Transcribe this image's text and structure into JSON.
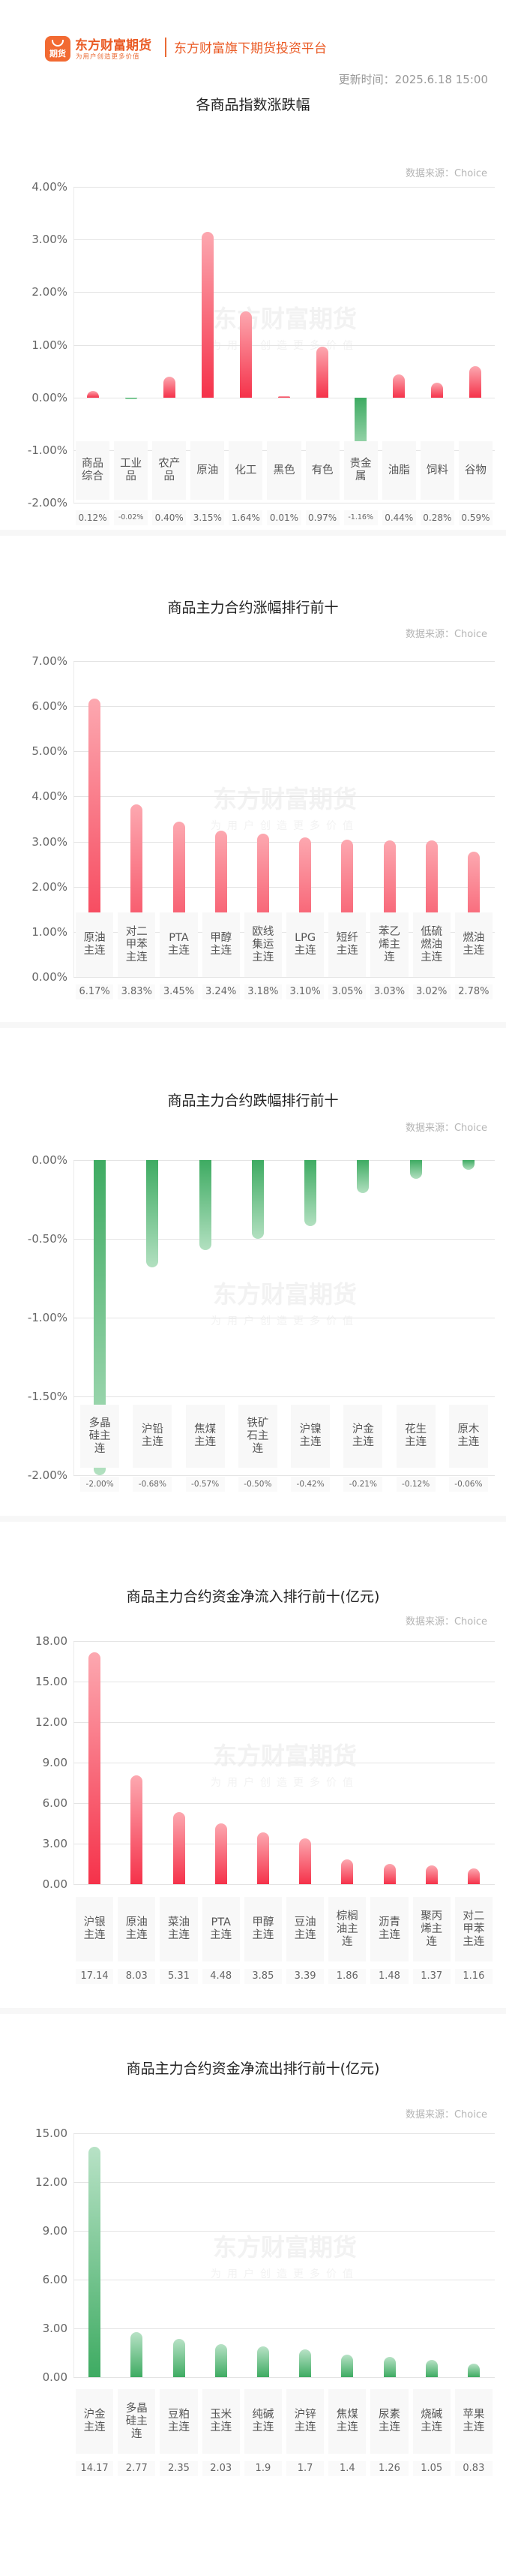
{
  "header": {
    "logo_text": "期货",
    "brand": "东方财富期货",
    "slogan": "为用户创造更多价值",
    "platform": "东方财富旗下期货投资平台",
    "update_time": "更新时间：2025.6.18 15:00"
  },
  "source_label": "数据来源：Choice",
  "watermark": {
    "line1": "东方财富期货",
    "line2": "为用户创造更多价值"
  },
  "sections": [
    {
      "title": "各商品指数涨跌幅",
      "yticks": [
        "4.00%",
        "3.00%",
        "2.00%",
        "1.00%",
        "0.00%",
        "-1.00%",
        "-2.00%"
      ],
      "labels": [
        "商品综合",
        "工业品",
        "农产品",
        "原油",
        "化工",
        "黑色",
        "有色",
        "贵金属",
        "油脂",
        "饲料",
        "谷物"
      ],
      "values": [
        "0.12%",
        "-0.02%",
        "0.40%",
        "3.15%",
        "1.64%",
        "0.01%",
        "0.97%",
        "-1.16%",
        "0.44%",
        "0.28%",
        "0.59%"
      ]
    },
    {
      "title": "商品主力合约涨幅排行前十",
      "yticks": [
        "7.00%",
        "6.00%",
        "5.00%",
        "4.00%",
        "3.00%",
        "2.00%",
        "1.00%",
        "0.00%"
      ],
      "labels": [
        "原油主连",
        "对二甲苯主连",
        "PTA主连",
        "甲醇主连",
        "欧线集运主连",
        "LPG主连",
        "短纤主连",
        "苯乙烯主连",
        "低硫燃油主连",
        "燃油主连"
      ],
      "values": [
        "6.17%",
        "3.83%",
        "3.45%",
        "3.24%",
        "3.18%",
        "3.10%",
        "3.05%",
        "3.03%",
        "3.02%",
        "2.78%"
      ]
    },
    {
      "title": "商品主力合约跌幅排行前十",
      "yticks": [
        "0.00%",
        "-0.50%",
        "-1.00%",
        "-1.50%",
        "-2.00%"
      ],
      "labels": [
        "多晶硅主连",
        "沪铅主连",
        "焦煤主连",
        "铁矿石主连",
        "沪镍主连",
        "沪金主连",
        "花生主连",
        "原木主连"
      ],
      "values": [
        "-2.00%",
        "-0.68%",
        "-0.57%",
        "-0.50%",
        "-0.42%",
        "-0.21%",
        "-0.12%",
        "-0.06%"
      ]
    },
    {
      "title": "商品主力合约资金净流入排行前十(亿元)",
      "yticks": [
        "18.00",
        "15.00",
        "12.00",
        "9.00",
        "6.00",
        "3.00",
        "0.00"
      ],
      "labels": [
        "沪银主连",
        "原油主连",
        "菜油主连",
        "PTA主连",
        "甲醇主连",
        "豆油主连",
        "棕榈油主连",
        "沥青主连",
        "聚丙烯主连",
        "对二甲苯主连"
      ],
      "values": [
        "17.14",
        "8.03",
        "5.31",
        "4.48",
        "3.85",
        "3.39",
        "1.86",
        "1.48",
        "1.37",
        "1.16"
      ]
    },
    {
      "title": "商品主力合约资金净流出排行前十(亿元)",
      "yticks": [
        "15.00",
        "12.00",
        "9.00",
        "6.00",
        "3.00",
        "0.00"
      ],
      "labels": [
        "沪金主连",
        "多晶硅主连",
        "豆粕主连",
        "玉米主连",
        "纯碱主连",
        "沪锌主连",
        "焦煤主连",
        "尿素主连",
        "烧碱主连",
        "苹果主连"
      ],
      "values": [
        "14.17",
        "2.77",
        "2.35",
        "2.03",
        "1.9",
        "1.7",
        "1.4",
        "1.26",
        "1.05",
        "0.83"
      ]
    }
  ],
  "colors": {
    "up": "#f5324a",
    "down": "#3eab62",
    "brand": "#ea5a24"
  },
  "chart_data": [
    {
      "type": "bar",
      "title": "各商品指数涨跌幅",
      "categories": [
        "商品综合",
        "工业品",
        "农产品",
        "原油",
        "化工",
        "黑色",
        "有色",
        "贵金属",
        "油脂",
        "饲料",
        "谷物"
      ],
      "values": [
        0.12,
        -0.02,
        0.4,
        3.15,
        1.64,
        0.01,
        0.97,
        -1.16,
        0.44,
        0.28,
        0.59
      ],
      "ylabel": "%",
      "ylim": [
        -2,
        4
      ],
      "grid": true
    },
    {
      "type": "bar",
      "title": "商品主力合约涨幅排行前十",
      "categories": [
        "原油主连",
        "对二甲苯主连",
        "PTA主连",
        "甲醇主连",
        "欧线集运主连",
        "LPG主连",
        "短纤主连",
        "苯乙烯主连",
        "低硫燃油主连",
        "燃油主连"
      ],
      "values": [
        6.17,
        3.83,
        3.45,
        3.24,
        3.18,
        3.1,
        3.05,
        3.03,
        3.02,
        2.78
      ],
      "ylabel": "%",
      "ylim": [
        0,
        7
      ],
      "grid": true
    },
    {
      "type": "bar",
      "title": "商品主力合约跌幅排行前十",
      "categories": [
        "多晶硅主连",
        "沪铅主连",
        "焦煤主连",
        "铁矿石主连",
        "沪镍主连",
        "沪金主连",
        "花生主连",
        "原木主连"
      ],
      "values": [
        -2.0,
        -0.68,
        -0.57,
        -0.5,
        -0.42,
        -0.21,
        -0.12,
        -0.06
      ],
      "ylabel": "%",
      "ylim": [
        -2,
        0
      ],
      "grid": true
    },
    {
      "type": "bar",
      "title": "商品主力合约资金净流入排行前十(亿元)",
      "categories": [
        "沪银主连",
        "原油主连",
        "菜油主连",
        "PTA主连",
        "甲醇主连",
        "豆油主连",
        "棕榈油主连",
        "沥青主连",
        "聚丙烯主连",
        "对二甲苯主连"
      ],
      "values": [
        17.14,
        8.03,
        5.31,
        4.48,
        3.85,
        3.39,
        1.86,
        1.48,
        1.37,
        1.16
      ],
      "ylabel": "亿元",
      "ylim": [
        0,
        18
      ],
      "grid": true
    },
    {
      "type": "bar",
      "title": "商品主力合约资金净流出排行前十(亿元)",
      "categories": [
        "沪金主连",
        "多晶硅主连",
        "豆粕主连",
        "玉米主连",
        "纯碱主连",
        "沪锌主连",
        "焦煤主连",
        "尿素主连",
        "烧碱主连",
        "苹果主连"
      ],
      "values": [
        14.17,
        2.77,
        2.35,
        2.03,
        1.9,
        1.7,
        1.4,
        1.26,
        1.05,
        0.83
      ],
      "ylabel": "亿元",
      "ylim": [
        0,
        15
      ],
      "grid": true
    }
  ]
}
